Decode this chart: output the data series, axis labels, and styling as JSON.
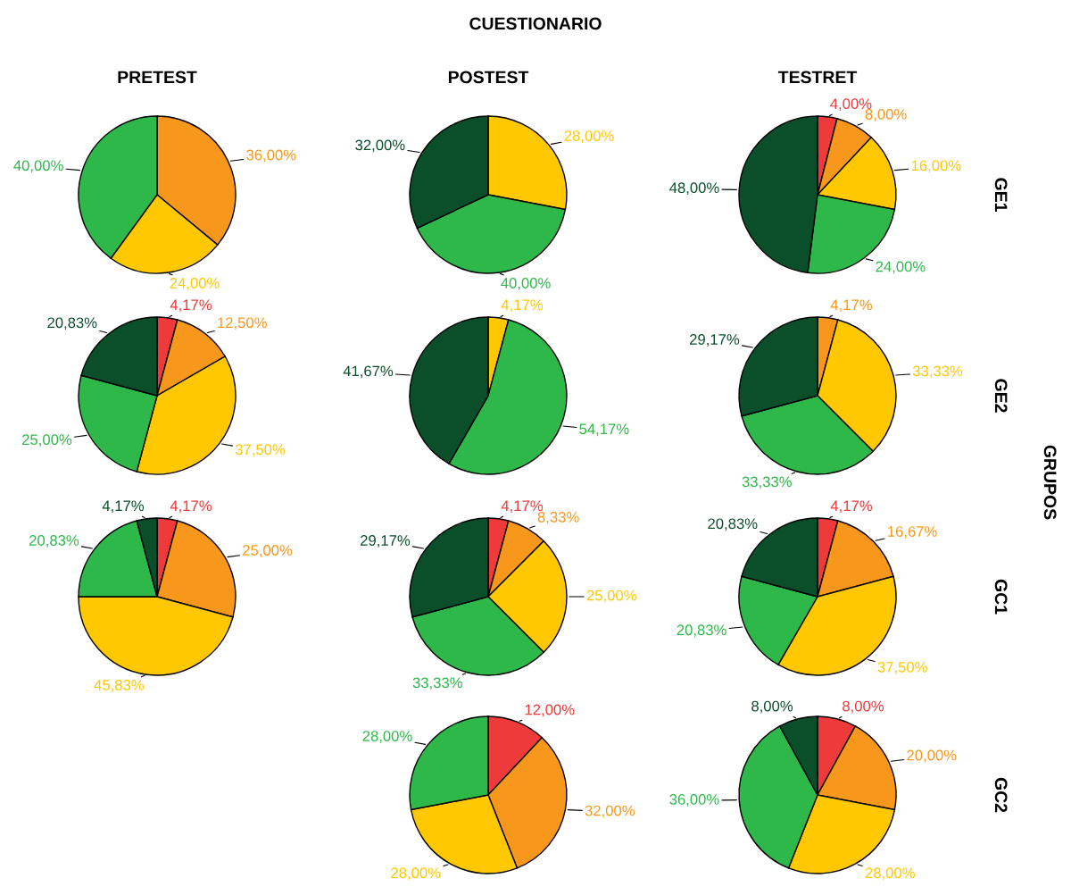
{
  "chart_data": [
    {
      "type": "other",
      "title": "CUESTIONARIO",
      "annotations": [
        "GRUPOS"
      ]
    },
    {
      "type": "pie",
      "title": "PRETEST",
      "categories": [
        null,
        null,
        null
      ],
      "values": [
        36,
        24,
        40
      ],
      "colors": [
        "#f7981d",
        "#ffc800",
        "#2eb84a"
      ],
      "value_labels": [
        "36,00%",
        "24,00%",
        "40,00%"
      ]
    },
    {
      "type": "pie",
      "title": "POSTEST",
      "categories": [
        null,
        null,
        null
      ],
      "values": [
        28,
        40,
        32
      ],
      "colors": [
        "#ffc800",
        "#2eb84a",
        "#0b4f2a"
      ],
      "value_labels": [
        "28,00%",
        "40,00%",
        "32,00%"
      ]
    },
    {
      "type": "pie",
      "title": "TESTRET",
      "y2label": "GE1",
      "categories": [
        null,
        null,
        null,
        null,
        null
      ],
      "values": [
        4,
        8,
        16,
        24,
        48
      ],
      "colors": [
        "#ee3a3a",
        "#f7981d",
        "#ffc800",
        "#2eb84a",
        "#0b4f2a"
      ],
      "value_labels": [
        "4,00%",
        "8,00%",
        "16,00%",
        "24,00%",
        "48,00%"
      ]
    },
    {
      "type": "pie",
      "categories": [
        null,
        null,
        null,
        null,
        null
      ],
      "values": [
        4.17,
        12.5,
        37.5,
        25,
        20.83
      ],
      "colors": [
        "#ee3a3a",
        "#f7981d",
        "#ffc800",
        "#2eb84a",
        "#0b4f2a"
      ],
      "value_labels": [
        "4,17%",
        "12,50%",
        "37,50%",
        "25,00%",
        "20,83%"
      ]
    },
    {
      "type": "pie",
      "categories": [
        null,
        null,
        null
      ],
      "values": [
        4.17,
        54.17,
        41.67
      ],
      "colors": [
        "#ffc800",
        "#2eb84a",
        "#0b4f2a"
      ],
      "value_labels": [
        "4,17%",
        "54,17%",
        "41,67%"
      ]
    },
    {
      "type": "pie",
      "y2label": "GE2",
      "categories": [
        null,
        null,
        null,
        null
      ],
      "values": [
        4.17,
        33.33,
        33.33,
        29.17
      ],
      "colors": [
        "#f7981d",
        "#ffc800",
        "#2eb84a",
        "#0b4f2a"
      ],
      "value_labels": [
        "4,17%",
        "33,33%",
        "33,33%",
        "29,17%"
      ]
    },
    {
      "type": "pie",
      "categories": [
        null,
        null,
        null,
        null,
        null
      ],
      "values": [
        4.17,
        25,
        45.83,
        20.83,
        4.17
      ],
      "colors": [
        "#ee3a3a",
        "#f7981d",
        "#ffc800",
        "#2eb84a",
        "#0b4f2a"
      ],
      "value_labels": [
        "4,17%",
        "25,00%",
        "45,83%",
        "20,83%",
        "4,17%"
      ]
    },
    {
      "type": "pie",
      "categories": [
        null,
        null,
        null,
        null,
        null
      ],
      "values": [
        4.17,
        8.33,
        25,
        33.33,
        29.17
      ],
      "colors": [
        "#ee3a3a",
        "#f7981d",
        "#ffc800",
        "#2eb84a",
        "#0b4f2a"
      ],
      "value_labels": [
        "4,17%",
        "8,33%",
        "25,00%",
        "33,33%",
        "29,17%"
      ]
    },
    {
      "type": "pie",
      "y2label": "GC1",
      "categories": [
        null,
        null,
        null,
        null,
        null
      ],
      "values": [
        4.17,
        16.67,
        37.5,
        20.83,
        20.83
      ],
      "colors": [
        "#ee3a3a",
        "#f7981d",
        "#ffc800",
        "#2eb84a",
        "#0b4f2a"
      ],
      "value_labels": [
        "4,17%",
        "16,67%",
        "37,50%",
        "20,83%",
        "20,83%"
      ]
    },
    {
      "type": "pie",
      "categories": [
        null,
        null,
        null,
        null
      ],
      "values": [
        12,
        32,
        28,
        28
      ],
      "colors": [
        "#ee3a3a",
        "#f7981d",
        "#ffc800",
        "#2eb84a"
      ],
      "value_labels": [
        "12,00%",
        "32,00%",
        "28,00%",
        "28,00%"
      ]
    },
    {
      "type": "pie",
      "y2label": "GC2",
      "categories": [
        null,
        null,
        null,
        null,
        null
      ],
      "values": [
        8,
        20,
        28,
        36,
        8
      ],
      "colors": [
        "#ee3a3a",
        "#f7981d",
        "#ffc800",
        "#2eb84a",
        "#0b4f2a"
      ],
      "value_labels": [
        "8,00%",
        "20,00%",
        "28,00%",
        "36,00%",
        "8,00%"
      ]
    }
  ]
}
